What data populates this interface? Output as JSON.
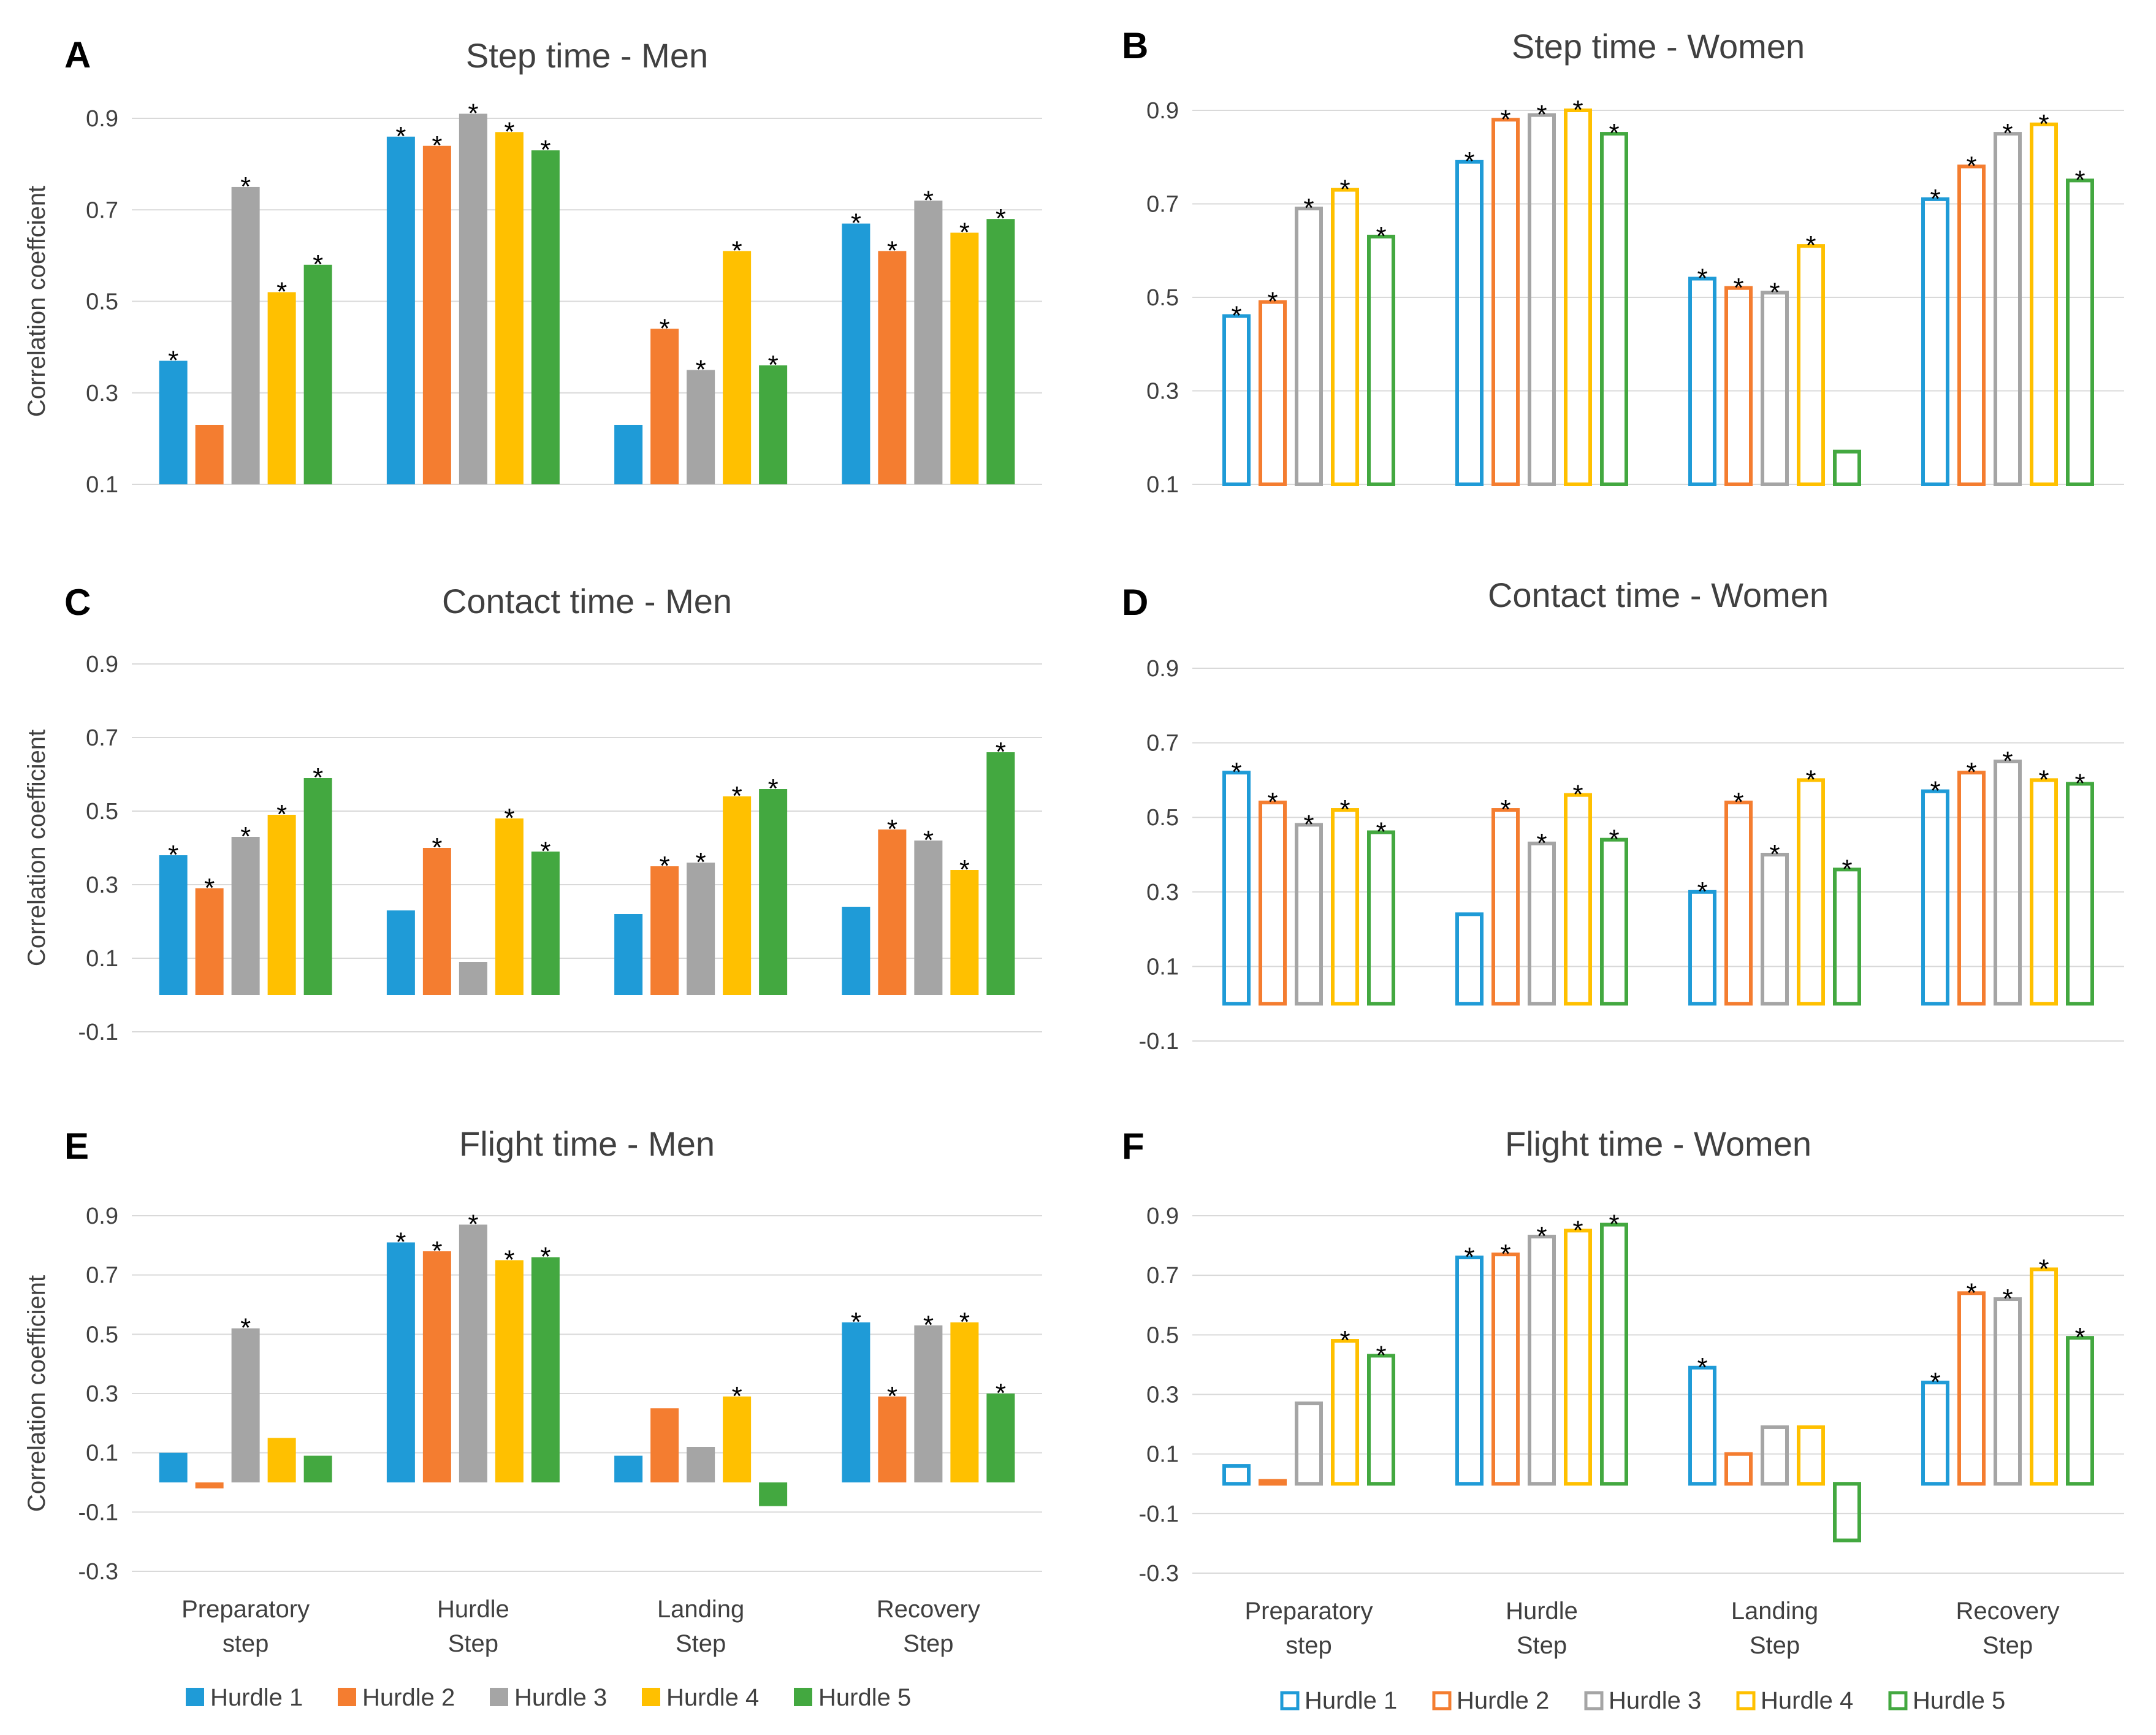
{
  "colors": {
    "Hurdle 1": "#1f9bd7",
    "Hurdle 2": "#f47d30",
    "Hurdle 3": "#a5a5a5",
    "Hurdle 4": "#ffc000",
    "Hurdle 5": "#43a840"
  },
  "legends": {
    "left": [
      "Hurdle 1",
      "Hurdle 2",
      "Hurdle 3",
      "Hurdle 4",
      "Hurdle 5"
    ],
    "right": [
      "Hurdle 1",
      "Hurdle 2",
      "Hurdle 3",
      "Hurdle 4",
      "Hurdle 5"
    ]
  },
  "chart_data": [
    {
      "panel": "A",
      "type": "bar",
      "style": "filled",
      "title": "Step time - Men",
      "ylabel": "Correlation coeffcient",
      "ylim": [
        0.1,
        0.9
      ],
      "yticks": [
        "0.1",
        "0.3",
        "0.5",
        "0.7",
        "0.9"
      ],
      "categories": [
        "Preparatory step",
        "Hurdle Step",
        "Landing Step",
        "Recovery Step"
      ],
      "series": [
        {
          "name": "Hurdle 1",
          "values": [
            0.37,
            0.86,
            0.23,
            0.67
          ],
          "sig": [
            true,
            true,
            false,
            true
          ]
        },
        {
          "name": "Hurdle 2",
          "values": [
            0.23,
            0.84,
            0.44,
            0.61
          ],
          "sig": [
            false,
            true,
            true,
            true
          ]
        },
        {
          "name": "Hurdle 3",
          "values": [
            0.75,
            0.91,
            0.35,
            0.72
          ],
          "sig": [
            true,
            true,
            true,
            true
          ]
        },
        {
          "name": "Hurdle 4",
          "values": [
            0.52,
            0.87,
            0.61,
            0.65
          ],
          "sig": [
            true,
            true,
            true,
            true
          ]
        },
        {
          "name": "Hurdle 5",
          "values": [
            0.58,
            0.83,
            0.36,
            0.68
          ],
          "sig": [
            true,
            true,
            true,
            true
          ]
        }
      ]
    },
    {
      "panel": "B",
      "type": "bar",
      "style": "outline",
      "title": "Step time - Women",
      "ylabel": "",
      "ylim": [
        0.1,
        0.9
      ],
      "yticks": [
        "0.1",
        "0.3",
        "0.5",
        "0.7",
        "0.9"
      ],
      "categories": [
        "Preparatory step",
        "Hurdle Step",
        "Landing Step",
        "Recovery Step"
      ],
      "series": [
        {
          "name": "Hurdle 1",
          "values": [
            0.46,
            0.79,
            0.54,
            0.71
          ],
          "sig": [
            true,
            true,
            true,
            true
          ]
        },
        {
          "name": "Hurdle 2",
          "values": [
            0.49,
            0.88,
            0.52,
            0.78
          ],
          "sig": [
            true,
            true,
            true,
            true
          ]
        },
        {
          "name": "Hurdle 3",
          "values": [
            0.69,
            0.89,
            0.51,
            0.85
          ],
          "sig": [
            true,
            true,
            true,
            true
          ]
        },
        {
          "name": "Hurdle 4",
          "values": [
            0.73,
            0.9,
            0.61,
            0.87
          ],
          "sig": [
            true,
            true,
            true,
            true
          ]
        },
        {
          "name": "Hurdle 5",
          "values": [
            0.63,
            0.85,
            0.17,
            0.75
          ],
          "sig": [
            true,
            true,
            false,
            true
          ]
        }
      ]
    },
    {
      "panel": "C",
      "type": "bar",
      "style": "filled",
      "title": "Contact time - Men",
      "ylabel": "Correlation coefficient",
      "ylim": [
        -0.1,
        0.9
      ],
      "yticks": [
        "-0.1",
        "0.1",
        "0.3",
        "0.5",
        "0.7",
        "0.9"
      ],
      "categories": [
        "Preparatory step",
        "Hurdle Step",
        "Landing Step",
        "Recovery Step"
      ],
      "series": [
        {
          "name": "Hurdle 1",
          "values": [
            0.38,
            0.23,
            0.22,
            0.24
          ],
          "sig": [
            true,
            false,
            false,
            false
          ]
        },
        {
          "name": "Hurdle 2",
          "values": [
            0.29,
            0.4,
            0.35,
            0.45
          ],
          "sig": [
            true,
            true,
            true,
            true
          ]
        },
        {
          "name": "Hurdle 3",
          "values": [
            0.43,
            0.09,
            0.36,
            0.42
          ],
          "sig": [
            true,
            false,
            true,
            true
          ]
        },
        {
          "name": "Hurdle 4",
          "values": [
            0.49,
            0.48,
            0.54,
            0.34
          ],
          "sig": [
            true,
            true,
            true,
            true
          ]
        },
        {
          "name": "Hurdle 5",
          "values": [
            0.59,
            0.39,
            0.56,
            0.66
          ],
          "sig": [
            true,
            true,
            true,
            true
          ]
        }
      ]
    },
    {
      "panel": "D",
      "type": "bar",
      "style": "outline",
      "title": "Contact time - Women",
      "ylabel": "",
      "ylim": [
        -0.1,
        0.9
      ],
      "yticks": [
        "-0.1",
        "0.1",
        "0.3",
        "0.5",
        "0.7",
        "0.9"
      ],
      "categories": [
        "Preparatory step",
        "Hurdle Step",
        "Landing Step",
        "Recovery Step"
      ],
      "series": [
        {
          "name": "Hurdle 1",
          "values": [
            0.62,
            0.24,
            0.3,
            0.57
          ],
          "sig": [
            true,
            false,
            true,
            true
          ]
        },
        {
          "name": "Hurdle 2",
          "values": [
            0.54,
            0.52,
            0.54,
            0.62
          ],
          "sig": [
            true,
            true,
            true,
            true
          ]
        },
        {
          "name": "Hurdle 3",
          "values": [
            0.48,
            0.43,
            0.4,
            0.65
          ],
          "sig": [
            true,
            true,
            true,
            true
          ]
        },
        {
          "name": "Hurdle 4",
          "values": [
            0.52,
            0.56,
            0.6,
            0.6
          ],
          "sig": [
            true,
            true,
            true,
            true
          ]
        },
        {
          "name": "Hurdle 5",
          "values": [
            0.46,
            0.44,
            0.36,
            0.59
          ],
          "sig": [
            true,
            true,
            true,
            true
          ]
        }
      ]
    },
    {
      "panel": "E",
      "type": "bar",
      "style": "filled",
      "title": "Flight time - Men",
      "ylabel": "Correlation coefficient",
      "ylim": [
        -0.3,
        0.9
      ],
      "yticks": [
        "-0.3",
        "-0.1",
        "0.1",
        "0.3",
        "0.5",
        "0.7",
        "0.9"
      ],
      "categories": [
        "Preparatory step",
        "Hurdle Step",
        "Landing Step",
        "Recovery Step"
      ],
      "series": [
        {
          "name": "Hurdle 1",
          "values": [
            0.1,
            0.81,
            0.09,
            0.54
          ],
          "sig": [
            false,
            true,
            false,
            true
          ]
        },
        {
          "name": "Hurdle 2",
          "values": [
            -0.02,
            0.78,
            0.25,
            0.29
          ],
          "sig": [
            false,
            true,
            false,
            true
          ]
        },
        {
          "name": "Hurdle 3",
          "values": [
            0.52,
            0.87,
            0.12,
            0.53
          ],
          "sig": [
            true,
            true,
            false,
            true
          ]
        },
        {
          "name": "Hurdle 4",
          "values": [
            0.15,
            0.75,
            0.29,
            0.54
          ],
          "sig": [
            false,
            true,
            true,
            true
          ]
        },
        {
          "name": "Hurdle 5",
          "values": [
            0.09,
            0.76,
            -0.08,
            0.3
          ],
          "sig": [
            false,
            true,
            false,
            true
          ]
        }
      ]
    },
    {
      "panel": "F",
      "type": "bar",
      "style": "outline",
      "title": "Flight time - Women",
      "ylabel": "",
      "ylim": [
        -0.3,
        0.9
      ],
      "yticks": [
        "-0.3",
        "-0.1",
        "0.1",
        "0.3",
        "0.5",
        "0.7",
        "0.9"
      ],
      "categories": [
        "Preparatory step",
        "Hurdle Step",
        "Landing Step",
        "Recovery Step"
      ],
      "series": [
        {
          "name": "Hurdle 1",
          "values": [
            0.06,
            0.76,
            0.39,
            0.34
          ],
          "sig": [
            false,
            true,
            true,
            true
          ]
        },
        {
          "name": "Hurdle 2",
          "values": [
            0.01,
            0.77,
            0.1,
            0.64
          ],
          "sig": [
            false,
            true,
            false,
            true
          ]
        },
        {
          "name": "Hurdle 3",
          "values": [
            0.27,
            0.83,
            0.19,
            0.62
          ],
          "sig": [
            false,
            true,
            false,
            true
          ]
        },
        {
          "name": "Hurdle 4",
          "values": [
            0.48,
            0.85,
            0.19,
            0.72
          ],
          "sig": [
            true,
            true,
            false,
            true
          ]
        },
        {
          "name": "Hurdle 5",
          "values": [
            0.43,
            0.87,
            -0.19,
            0.49
          ],
          "sig": [
            true,
            true,
            false,
            true
          ]
        }
      ]
    }
  ]
}
